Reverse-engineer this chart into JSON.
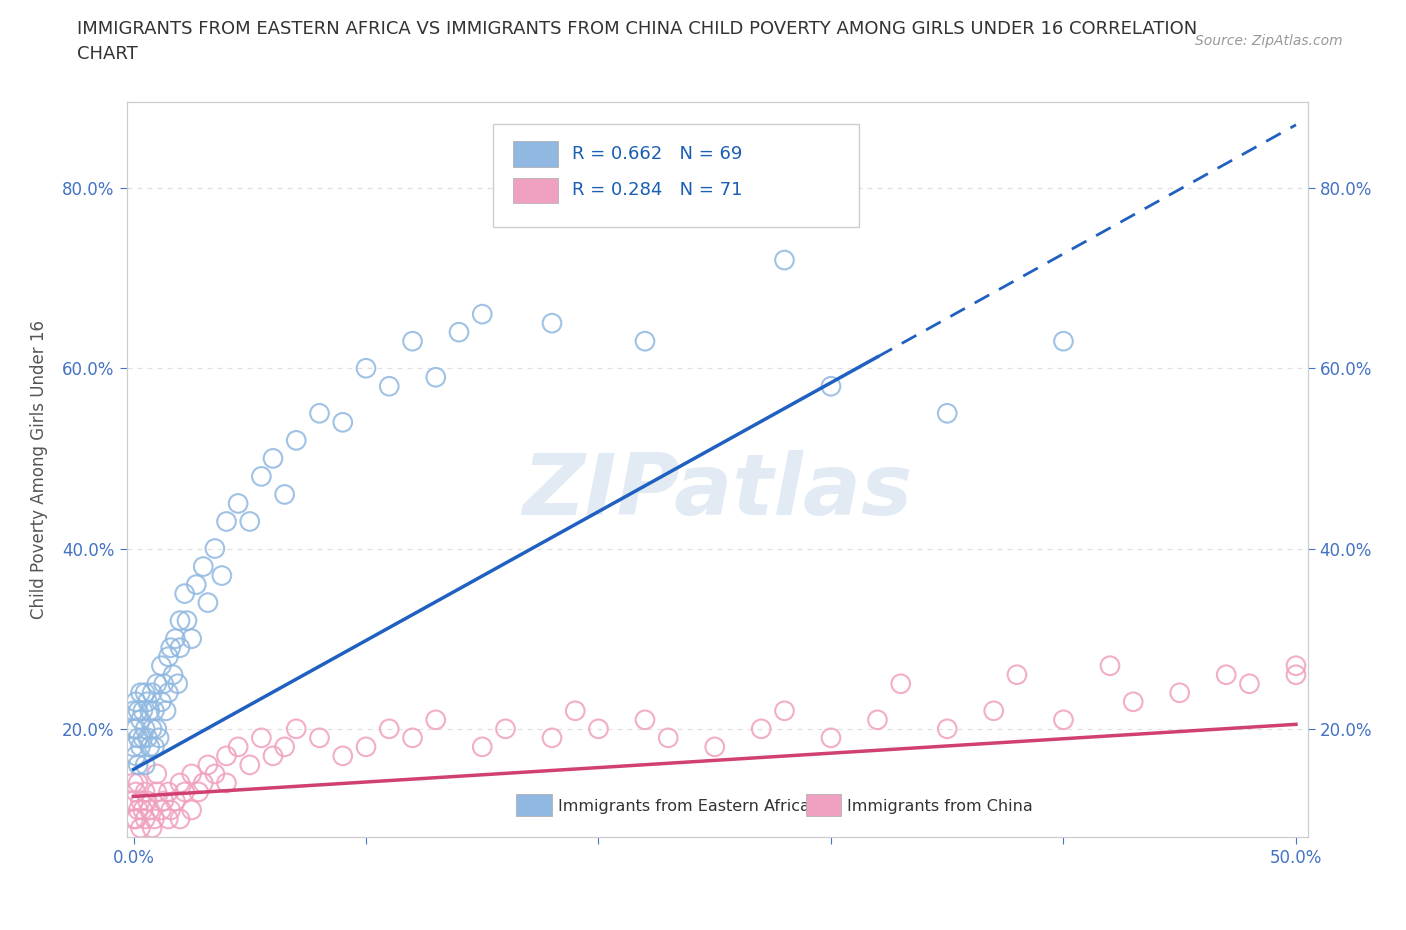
{
  "title_line1": "IMMIGRANTS FROM EASTERN AFRICA VS IMMIGRANTS FROM CHINA CHILD POVERTY AMONG GIRLS UNDER 16 CORRELATION",
  "title_line2": "CHART",
  "source": "Source: ZipAtlas.com",
  "ylabel": "Child Poverty Among Girls Under 16",
  "xlim": [
    -0.003,
    0.505
  ],
  "ylim": [
    0.08,
    0.895
  ],
  "yticks": [
    0.2,
    0.4,
    0.6,
    0.8
  ],
  "ytick_labels": [
    "20.0%",
    "40.0%",
    "60.0%",
    "80.0%"
  ],
  "xtick_positions": [
    0.0,
    0.1,
    0.2,
    0.3,
    0.4,
    0.5
  ],
  "xtick_labels": [
    "0.0%",
    "",
    "",
    "",
    "",
    "50.0%"
  ],
  "watermark": "ZIPatlas",
  "watermark_color": "#c0d4e8",
  "watermark_alpha": 0.45,
  "background_color": "#ffffff",
  "grid_color": "#e0e0e0",
  "grid_linestyle": "dotted",
  "legend_R1": "R = 0.662",
  "legend_N1": "N = 69",
  "legend_R2": "R = 0.284",
  "legend_N2": "N = 71",
  "ea_color": "#90b8e0",
  "ch_color": "#f0a0c0",
  "ea_trend_color": "#2060c0",
  "ch_trend_color": "#d04070",
  "ea_name": "Immigrants from Eastern Africa",
  "ch_name": "Immigrants from China",
  "ea_trend_x0": 0.0,
  "ea_trend_x1": 0.5,
  "ea_trend_y0": 0.155,
  "ea_trend_y1": 0.87,
  "ea_dash_from": 0.32,
  "ch_trend_x0": 0.0,
  "ch_trend_x1": 0.5,
  "ch_trend_y0": 0.125,
  "ch_trend_y1": 0.205,
  "ea_scatter_x": [
    0.0,
    0.0,
    0.0,
    0.001,
    0.001,
    0.001,
    0.002,
    0.002,
    0.002,
    0.003,
    0.003,
    0.003,
    0.004,
    0.004,
    0.005,
    0.005,
    0.005,
    0.006,
    0.006,
    0.007,
    0.007,
    0.008,
    0.008,
    0.009,
    0.009,
    0.01,
    0.01,
    0.011,
    0.012,
    0.012,
    0.013,
    0.014,
    0.015,
    0.015,
    0.016,
    0.017,
    0.018,
    0.019,
    0.02,
    0.02,
    0.022,
    0.023,
    0.025,
    0.027,
    0.03,
    0.032,
    0.035,
    0.038,
    0.04,
    0.045,
    0.05,
    0.055,
    0.06,
    0.065,
    0.07,
    0.08,
    0.09,
    0.1,
    0.11,
    0.12,
    0.13,
    0.14,
    0.15,
    0.18,
    0.22,
    0.28,
    0.3,
    0.35,
    0.4
  ],
  "ea_scatter_y": [
    0.18,
    0.2,
    0.22,
    0.17,
    0.2,
    0.23,
    0.16,
    0.19,
    0.22,
    0.18,
    0.21,
    0.24,
    0.19,
    0.22,
    0.16,
    0.2,
    0.24,
    0.19,
    0.23,
    0.18,
    0.22,
    0.2,
    0.24,
    0.18,
    0.22,
    0.2,
    0.25,
    0.19,
    0.23,
    0.27,
    0.25,
    0.22,
    0.28,
    0.24,
    0.29,
    0.26,
    0.3,
    0.25,
    0.32,
    0.29,
    0.35,
    0.32,
    0.3,
    0.36,
    0.38,
    0.34,
    0.4,
    0.37,
    0.43,
    0.45,
    0.43,
    0.48,
    0.5,
    0.46,
    0.52,
    0.55,
    0.54,
    0.6,
    0.58,
    0.63,
    0.59,
    0.64,
    0.66,
    0.65,
    0.63,
    0.72,
    0.58,
    0.55,
    0.63
  ],
  "ch_scatter_x": [
    0.0,
    0.0,
    0.0,
    0.001,
    0.001,
    0.002,
    0.002,
    0.003,
    0.003,
    0.004,
    0.005,
    0.005,
    0.006,
    0.007,
    0.008,
    0.009,
    0.01,
    0.01,
    0.012,
    0.013,
    0.015,
    0.015,
    0.016,
    0.018,
    0.02,
    0.02,
    0.022,
    0.025,
    0.025,
    0.028,
    0.03,
    0.032,
    0.035,
    0.04,
    0.04,
    0.045,
    0.05,
    0.055,
    0.06,
    0.065,
    0.07,
    0.08,
    0.09,
    0.1,
    0.11,
    0.12,
    0.13,
    0.15,
    0.16,
    0.18,
    0.19,
    0.2,
    0.22,
    0.23,
    0.25,
    0.27,
    0.28,
    0.3,
    0.32,
    0.33,
    0.35,
    0.37,
    0.38,
    0.4,
    0.42,
    0.43,
    0.45,
    0.47,
    0.48,
    0.5,
    0.5
  ],
  "ch_scatter_y": [
    0.12,
    0.14,
    0.1,
    0.13,
    0.1,
    0.11,
    0.14,
    0.12,
    0.09,
    0.11,
    0.1,
    0.13,
    0.12,
    0.11,
    0.09,
    0.1,
    0.13,
    0.15,
    0.11,
    0.12,
    0.1,
    0.13,
    0.11,
    0.12,
    0.14,
    0.1,
    0.13,
    0.11,
    0.15,
    0.13,
    0.14,
    0.16,
    0.15,
    0.17,
    0.14,
    0.18,
    0.16,
    0.19,
    0.17,
    0.18,
    0.2,
    0.19,
    0.17,
    0.18,
    0.2,
    0.19,
    0.21,
    0.18,
    0.2,
    0.19,
    0.22,
    0.2,
    0.21,
    0.19,
    0.18,
    0.2,
    0.22,
    0.19,
    0.21,
    0.25,
    0.2,
    0.22,
    0.26,
    0.21,
    0.27,
    0.23,
    0.24,
    0.26,
    0.25,
    0.27,
    0.26
  ]
}
